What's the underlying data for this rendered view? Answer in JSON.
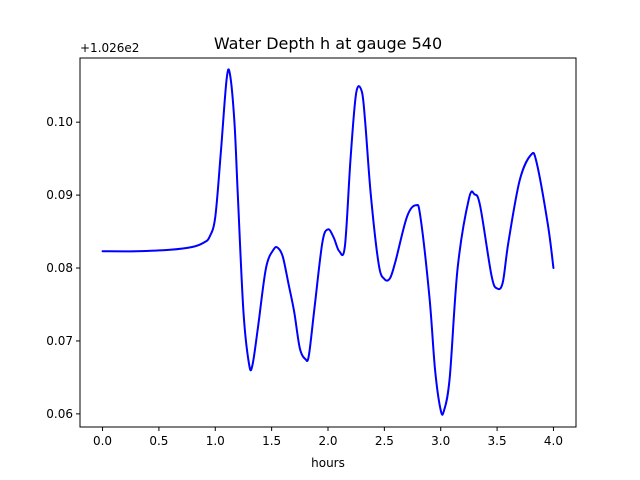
{
  "chart_data": {
    "type": "line",
    "title": "Water Depth h at gauge 540",
    "xlabel": "hours",
    "ylabel": "",
    "y_offset_label": "+1.026e2",
    "xlim": [
      -0.2,
      4.2
    ],
    "ylim": [
      0.0582,
      0.1088
    ],
    "x_ticks": [
      0.0,
      0.5,
      1.0,
      1.5,
      2.0,
      2.5,
      3.0,
      3.5,
      4.0
    ],
    "x_tick_labels": [
      "0.0",
      "0.5",
      "1.0",
      "1.5",
      "2.0",
      "2.5",
      "3.0",
      "3.5",
      "4.0"
    ],
    "y_ticks": [
      0.06,
      0.07,
      0.08,
      0.09,
      0.1
    ],
    "y_tick_labels": [
      "0.06",
      "0.07",
      "0.08",
      "0.09",
      "0.10"
    ],
    "grid": false,
    "series": [
      {
        "color": "#0000ff",
        "x": [
          0.0,
          0.3,
          0.6,
          0.8,
          0.9,
          0.95,
          1.0,
          1.05,
          1.1,
          1.13,
          1.17,
          1.2,
          1.25,
          1.3,
          1.33,
          1.38,
          1.45,
          1.52,
          1.56,
          1.6,
          1.65,
          1.7,
          1.75,
          1.8,
          1.83,
          1.88,
          1.95,
          2.0,
          2.05,
          2.1,
          2.15,
          2.2,
          2.25,
          2.3,
          2.33,
          2.38,
          2.45,
          2.5,
          2.55,
          2.6,
          2.7,
          2.78,
          2.82,
          2.9,
          2.95,
          3.0,
          3.03,
          3.08,
          3.15,
          3.25,
          3.3,
          3.35,
          3.45,
          3.5,
          3.55,
          3.6,
          3.7,
          3.8,
          3.85,
          3.95,
          4.0
        ],
        "y": [
          0.0823,
          0.0823,
          0.0825,
          0.0829,
          0.0835,
          0.0843,
          0.087,
          0.096,
          0.1058,
          0.1066,
          0.1,
          0.09,
          0.074,
          0.0668,
          0.0667,
          0.072,
          0.08,
          0.0826,
          0.0827,
          0.0815,
          0.0778,
          0.074,
          0.069,
          0.0675,
          0.068,
          0.0745,
          0.0835,
          0.0853,
          0.0842,
          0.0823,
          0.083,
          0.095,
          0.104,
          0.1042,
          0.1,
          0.09,
          0.0805,
          0.0785,
          0.0786,
          0.081,
          0.087,
          0.0886,
          0.087,
          0.076,
          0.066,
          0.0605,
          0.0605,
          0.065,
          0.08,
          0.0895,
          0.0901,
          0.0885,
          0.079,
          0.0772,
          0.078,
          0.0835,
          0.092,
          0.0955,
          0.0945,
          0.086,
          0.08
        ]
      }
    ]
  }
}
